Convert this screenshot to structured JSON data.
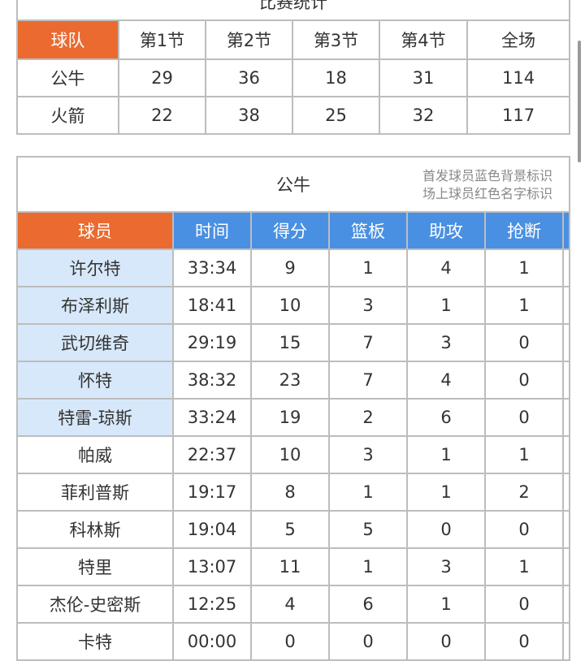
{
  "score_table": {
    "title": "比赛统计",
    "headers": [
      "球队",
      "第1节",
      "第2节",
      "第3节",
      "第4节",
      "全场"
    ],
    "rows": [
      [
        "公牛",
        "29",
        "36",
        "18",
        "31",
        "114"
      ],
      [
        "火箭",
        "22",
        "38",
        "25",
        "32",
        "117"
      ]
    ]
  },
  "player_table": {
    "team": "公牛",
    "note_line1": "首发球员蓝色背景标识",
    "note_line2": "场上球员红色名字标识",
    "headers": [
      "球员",
      "时间",
      "得分",
      "篮板",
      "助攻",
      "抢断"
    ],
    "rows": [
      {
        "cells": [
          "许尔特",
          "33:34",
          "9",
          "1",
          "4",
          "1"
        ],
        "starter": true
      },
      {
        "cells": [
          "布泽利斯",
          "18:41",
          "10",
          "3",
          "1",
          "1"
        ],
        "starter": true
      },
      {
        "cells": [
          "武切维奇",
          "29:19",
          "15",
          "7",
          "3",
          "0"
        ],
        "starter": true
      },
      {
        "cells": [
          "怀特",
          "38:32",
          "23",
          "7",
          "4",
          "0"
        ],
        "starter": true
      },
      {
        "cells": [
          "特雷-琼斯",
          "33:24",
          "19",
          "2",
          "6",
          "0"
        ],
        "starter": true
      },
      {
        "cells": [
          "帕威",
          "22:37",
          "10",
          "3",
          "1",
          "1"
        ],
        "starter": false
      },
      {
        "cells": [
          "菲利普斯",
          "19:17",
          "8",
          "1",
          "1",
          "2"
        ],
        "starter": false
      },
      {
        "cells": [
          "科林斯",
          "19:04",
          "5",
          "5",
          "0",
          "0"
        ],
        "starter": false
      },
      {
        "cells": [
          "特里",
          "13:07",
          "11",
          "1",
          "3",
          "1"
        ],
        "starter": false
      },
      {
        "cells": [
          "杰伦-史密斯",
          "12:25",
          "4",
          "6",
          "1",
          "0"
        ],
        "starter": false
      },
      {
        "cells": [
          "卡特",
          "00:00",
          "0",
          "0",
          "0",
          "0"
        ],
        "starter": false
      }
    ]
  },
  "colors": {
    "header_orange": "#ea6a30",
    "header_blue": "#4a90e2",
    "starter_bg": "#d7e8fa"
  }
}
